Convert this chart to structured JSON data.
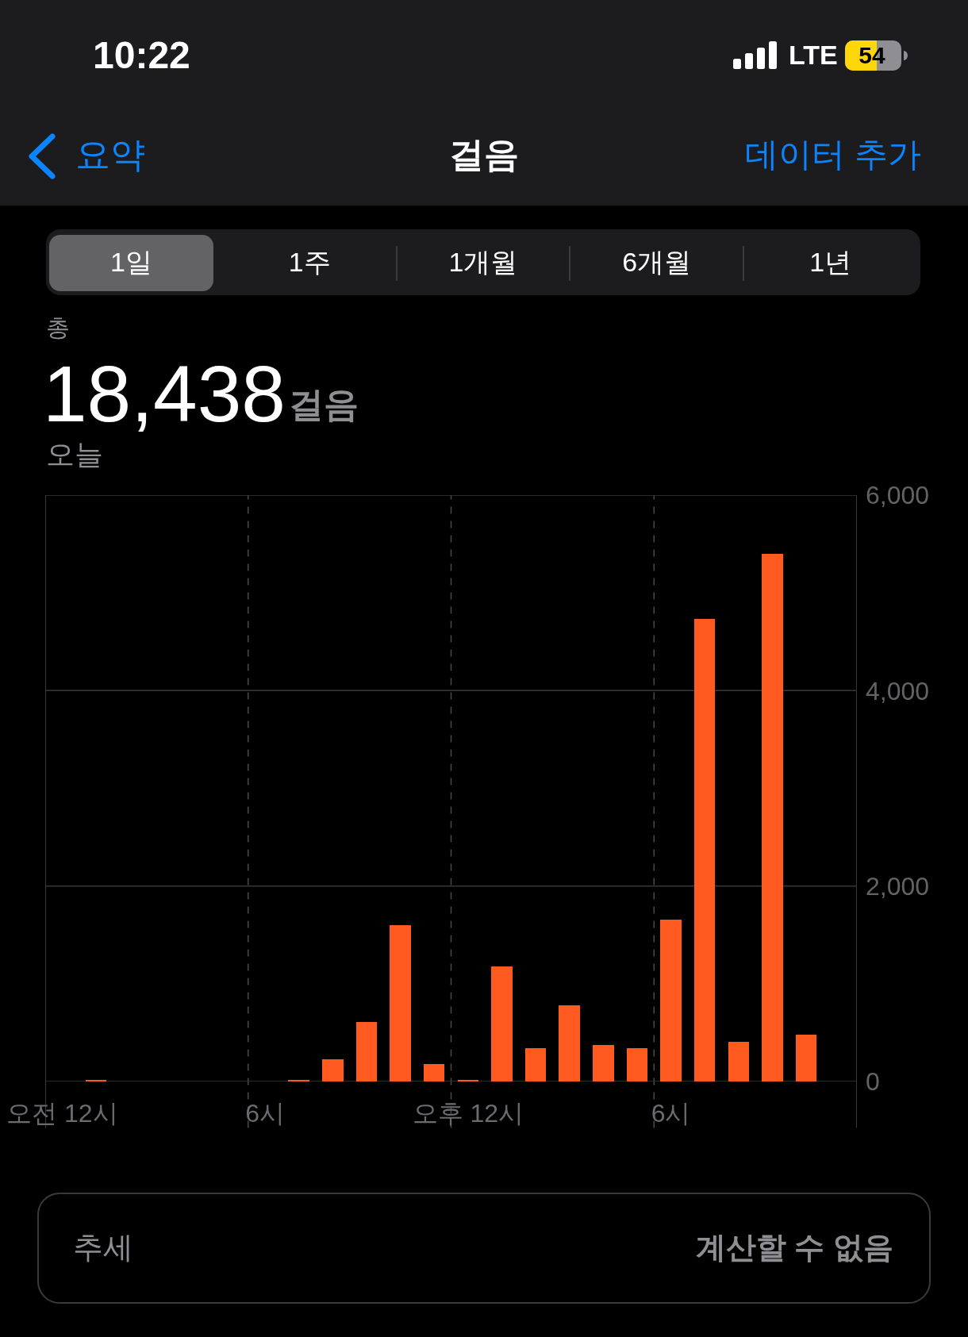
{
  "chart_data": {
    "type": "bar",
    "title": "걸음",
    "annotations": [
      "10:22",
      "LTE",
      "54",
      "요약",
      "데이터 추가",
      "1일",
      "1주",
      "1개월",
      "6개월",
      "1년",
      "총",
      "18,438",
      "걸음",
      "오늘",
      "추세",
      "계산할 수 없음"
    ],
    "categories": [
      "오전 12시",
      null,
      null,
      null,
      null,
      null,
      "6시",
      null,
      null,
      null,
      null,
      null,
      "오후 12시",
      null,
      null,
      null,
      null,
      null,
      "6시",
      null,
      null,
      null,
      null,
      null
    ],
    "values": [
      null,
      20,
      null,
      null,
      null,
      null,
      null,
      20,
      230,
      610,
      1600,
      180,
      20,
      1180,
      340,
      780,
      370,
      340,
      1660,
      4730,
      410,
      5400,
      480,
      null
    ],
    "color": "#ff5a1f",
    "ylim": [
      0,
      6000
    ],
    "yticks": [
      0,
      {
        "value": 2000,
        "label": "2,000"
      },
      {
        "value": 4000,
        "label": "4,000"
      },
      {
        "value": 6000,
        "label": "6,000"
      }
    ],
    "grid": true
  }
}
